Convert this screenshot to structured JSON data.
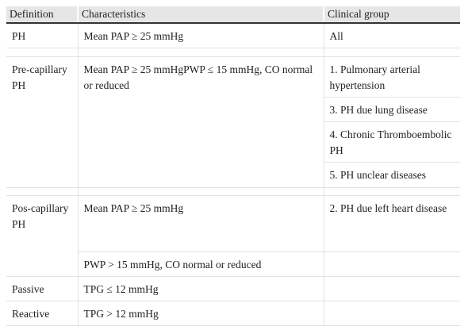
{
  "table": {
    "header": [
      "Definition",
      "Characteristics",
      "Clinical group"
    ],
    "rows": [
      {
        "definition": "PH",
        "characteristics": "Mean PAP ≥ 25 mmHg",
        "clinical_groups": [
          "All"
        ]
      },
      {
        "definition": "Pre-capillary PH",
        "characteristics": "Mean PAP ≥ 25 mmHgPWP ≤ 15 mmHg, CO normal or reduced",
        "clinical_groups": [
          "1. Pulmonary arterial hypertension",
          "3. PH due lung disease",
          "4. Chronic Thromboembolic PH",
          "5. PH unclear diseases"
        ]
      },
      {
        "definition": "Pos-capillary PH",
        "characteristics": "Mean PAP ≥ 25 mmHg",
        "clinical_groups": [
          "2. PH due left heart disease"
        ]
      },
      {
        "characteristics": "PWP > 15 mmHg, CO normal or reduced"
      },
      {
        "definition": "Passive",
        "characteristics": "TPG ≤ 12 mmHg"
      },
      {
        "definition": "Reactive",
        "characteristics": "TPG > 12 mmHg"
      }
    ]
  }
}
